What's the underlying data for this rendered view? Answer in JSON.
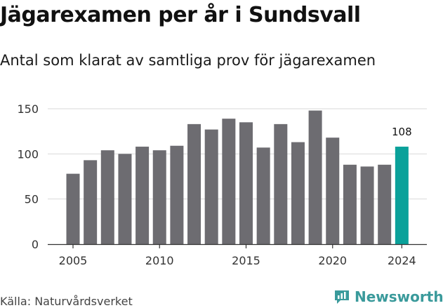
{
  "title": "Jägarexamen per år i Sundsvall",
  "subtitle": "Antal som klarat av samtliga prov för jägarexamen",
  "source": "Källa: Naturvårdsverket",
  "brand": {
    "name": "Newsworthy",
    "icon": "newsworthy-logo-icon",
    "color": "#3a9a9b"
  },
  "colors": {
    "bar": "#6d6c71",
    "highlight": "#0aa19a",
    "grid": "#d9d9d9",
    "axis": "#333333"
  },
  "chart_data": {
    "type": "bar",
    "x": [
      2005,
      2006,
      2007,
      2008,
      2009,
      2010,
      2011,
      2012,
      2013,
      2014,
      2015,
      2016,
      2017,
      2018,
      2019,
      2020,
      2021,
      2022,
      2023,
      2024
    ],
    "values": [
      78,
      93,
      104,
      100,
      108,
      104,
      109,
      133,
      127,
      139,
      135,
      107,
      133,
      113,
      148,
      118,
      88,
      86,
      88,
      108
    ],
    "xticks": [
      "2005",
      "2010",
      "2015",
      "2020",
      "2024"
    ],
    "yticks": [
      "0",
      "50",
      "100",
      "150"
    ],
    "ylim": [
      0,
      150
    ],
    "highlight": {
      "x": 2024,
      "label": "108"
    },
    "xlabel": "",
    "ylabel": "",
    "grid": true
  }
}
